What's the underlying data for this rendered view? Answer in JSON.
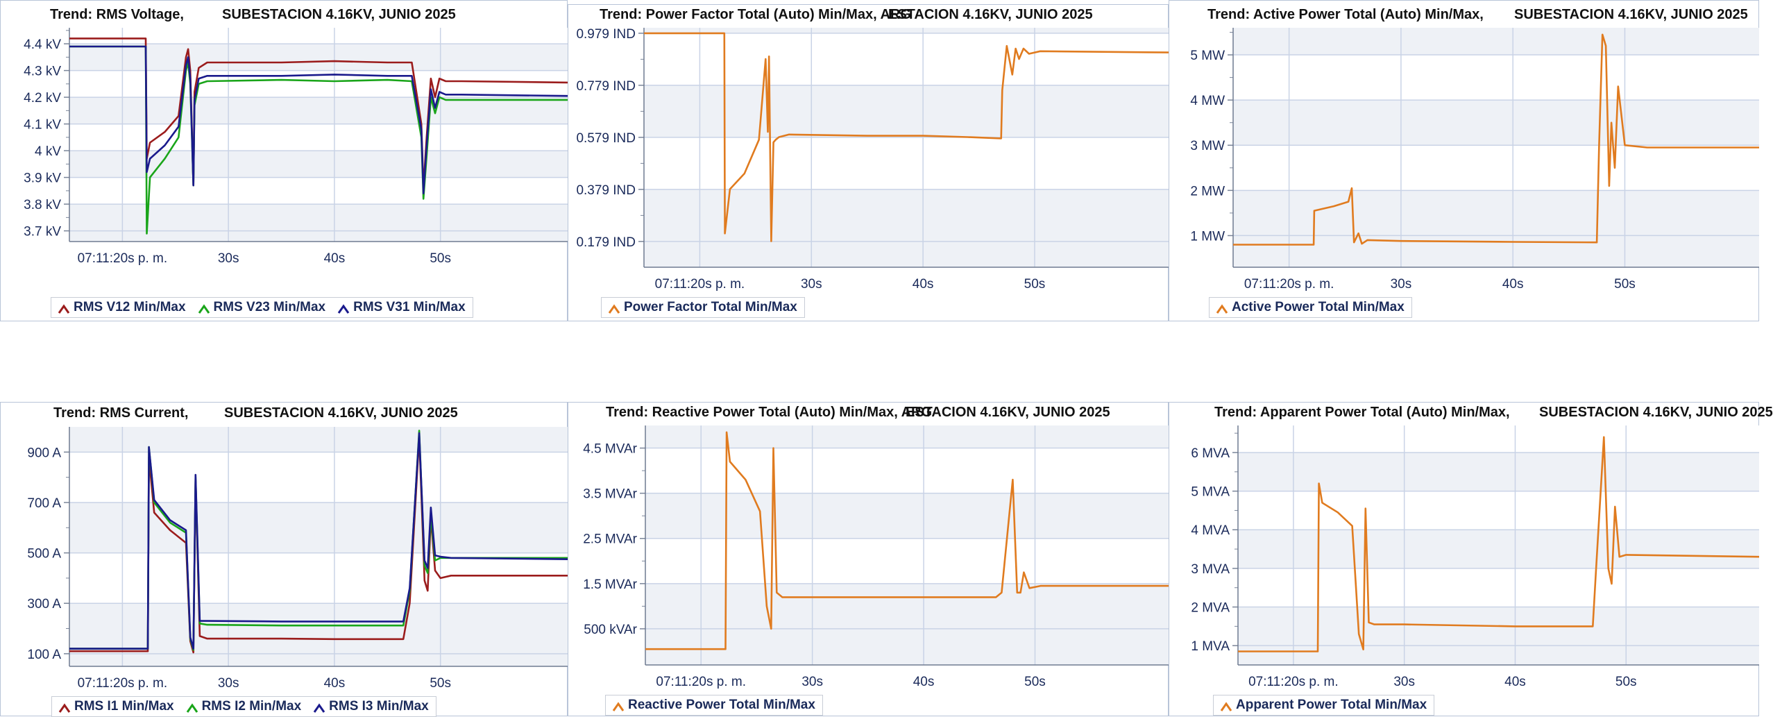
{
  "panels": [
    {
      "id": "rms-voltage",
      "title_left": "Trend: RMS Voltage,",
      "title_right": "SUBESTACION 4.16KV, JUNIO 2025",
      "legend": [
        {
          "label": "RMS V12 Min/Max",
          "color": "#9b1c1c"
        },
        {
          "label": "RMS V23 Min/Max",
          "color": "#1aa51a"
        },
        {
          "label": "RMS V31 Min/Max",
          "color": "#1a1a8c"
        }
      ],
      "x_tick_labels": [
        "07:11:20s p. m.",
        "30s",
        "40s",
        "50s"
      ]
    },
    {
      "id": "power-factor",
      "title_left": "Trend: Power Factor Total (Auto) Min/Max, ARG",
      "title_right": "ESTACION 4.16KV, JUNIO 2025",
      "legend": [
        {
          "label": "Power Factor Total Min/Max",
          "color": "#e07b1f"
        }
      ],
      "x_tick_labels": [
        "07:11:20s p. m.",
        "30s",
        "40s",
        "50s"
      ]
    },
    {
      "id": "active-power",
      "title_left": "Trend: Active Power Total (Auto) Min/Max,",
      "title_right": "SUBESTACION 4.16KV, JUNIO 2025",
      "legend": [
        {
          "label": "Active Power Total Min/Max",
          "color": "#e07b1f"
        }
      ],
      "x_tick_labels": [
        "07:11:20s p. m.",
        "30s",
        "40s",
        "50s"
      ]
    },
    {
      "id": "rms-current",
      "title_left": "Trend: RMS Current,",
      "title_right": "SUBESTACION 4.16KV, JUNIO 2025",
      "legend": [
        {
          "label": "RMS I1 Min/Max",
          "color": "#9b1c1c"
        },
        {
          "label": "RMS I2 Min/Max",
          "color": "#1aa51a"
        },
        {
          "label": "RMS I3 Min/Max",
          "color": "#1a1a8c"
        }
      ],
      "x_tick_labels": [
        "07:11:20s p. m.",
        "30s",
        "40s",
        "50s"
      ]
    },
    {
      "id": "reactive-power",
      "title_left": "Trend: Reactive Power Total (Auto) Min/Max, ARG",
      "title_right": "ESTACION 4.16KV, JUNIO 2025",
      "legend": [
        {
          "label": "Reactive Power Total Min/Max",
          "color": "#e07b1f"
        }
      ],
      "x_tick_labels": [
        "07:11:20s p. m.",
        "30s",
        "40s",
        "50s"
      ]
    },
    {
      "id": "apparent-power",
      "title_left": "Trend: Apparent Power Total (Auto) Min/Max,",
      "title_right": "SUBESTACION 4.16KV, JUNIO 2025",
      "legend": [
        {
          "label": "Apparent Power Total Min/Max",
          "color": "#e07b1f"
        }
      ],
      "x_tick_labels": [
        "07:11:20s p. m.",
        "30s",
        "40s",
        "50s"
      ]
    }
  ],
  "chart_data": [
    {
      "type": "line",
      "title": "Trend: RMS Voltage, SUBESTACION 4.16KV, JUNIO 2025",
      "x_unit": "s",
      "xlim": [
        15,
        62
      ],
      "ylim": [
        3.66,
        4.46
      ],
      "y_ticks": [
        3.7,
        3.8,
        3.9,
        4.0,
        4.1,
        4.2,
        4.3,
        4.4
      ],
      "y_tick_labels": [
        "3.7 kV",
        "3.8 kV",
        "3.9 kV",
        "4 kV",
        "4.1 kV",
        "4.2 kV",
        "4.3 kV",
        "4.4 kV"
      ],
      "x_ticks": [
        20,
        30,
        40,
        50
      ],
      "series": [
        {
          "name": "RMS V12 Min/Max",
          "color": "#9b1c1c",
          "x": [
            15,
            22.2,
            22.3,
            22.6,
            24,
            25.3,
            26,
            26.2,
            26.4,
            26.7,
            26.8,
            27.2,
            28,
            35,
            40,
            45,
            47.3,
            48.2,
            48.4,
            48.7,
            49.1,
            49.5,
            49.9,
            50.5,
            52,
            62
          ],
          "y": [
            4.42,
            4.42,
            3.97,
            4.03,
            4.07,
            4.13,
            4.35,
            4.38,
            4.3,
            3.87,
            4.22,
            4.31,
            4.33,
            4.33,
            4.335,
            4.33,
            4.33,
            4.1,
            3.86,
            4.05,
            4.27,
            4.2,
            4.27,
            4.26,
            4.26,
            4.255
          ]
        },
        {
          "name": "RMS V23 Min/Max",
          "color": "#1aa51a",
          "x": [
            15,
            22.2,
            22.3,
            22.6,
            24,
            25.3,
            26,
            26.2,
            26.4,
            26.7,
            26.8,
            27.2,
            28,
            35,
            40,
            45,
            47.3,
            48.2,
            48.4,
            48.7,
            49.1,
            49.5,
            49.9,
            50.5,
            52,
            62
          ],
          "y": [
            4.39,
            4.39,
            3.69,
            3.9,
            3.97,
            4.05,
            4.3,
            4.33,
            4.25,
            3.87,
            4.17,
            4.25,
            4.26,
            4.265,
            4.26,
            4.265,
            4.26,
            4.05,
            3.82,
            3.98,
            4.2,
            4.14,
            4.2,
            4.19,
            4.19,
            4.19
          ]
        },
        {
          "name": "RMS V31 Min/Max",
          "color": "#1a1a8c",
          "x": [
            15,
            22.2,
            22.3,
            22.6,
            24,
            25.3,
            26,
            26.2,
            26.4,
            26.7,
            26.8,
            27.2,
            28,
            35,
            40,
            45,
            47.3,
            48.2,
            48.4,
            48.7,
            49.1,
            49.5,
            49.9,
            50.5,
            52,
            62
          ],
          "y": [
            4.39,
            4.39,
            3.92,
            3.97,
            4.02,
            4.09,
            4.32,
            4.35,
            4.27,
            3.87,
            4.19,
            4.27,
            4.28,
            4.28,
            4.285,
            4.28,
            4.28,
            4.08,
            3.84,
            4.02,
            4.23,
            4.16,
            4.22,
            4.21,
            4.21,
            4.205
          ]
        }
      ]
    },
    {
      "type": "line",
      "title": "Trend: Power Factor Total (Auto) Min/Max, ARGESTACION 4.16KV, JUNIO 2025",
      "x_unit": "s",
      "xlim": [
        15,
        62
      ],
      "ylim": [
        0.08,
        1.0
      ],
      "y_ticks": [
        0.179,
        0.379,
        0.579,
        0.779,
        0.979
      ],
      "y_tick_labels": [
        "0.179 IND",
        "0.379 IND",
        "0.579 IND",
        "0.779 IND",
        "0.979 IND"
      ],
      "x_ticks": [
        20,
        30,
        40,
        50
      ],
      "series": [
        {
          "name": "Power Factor Total Min/Max",
          "color": "#e07b1f",
          "x": [
            15,
            22.2,
            22.25,
            22.7,
            24,
            25.3,
            25.9,
            26.1,
            26.2,
            26.4,
            26.6,
            26.8,
            27.1,
            28,
            35,
            40,
            44,
            47.0,
            47.1,
            47.5,
            48.0,
            48.3,
            48.6,
            49.0,
            49.5,
            50.5,
            62
          ],
          "y": [
            0.979,
            0.979,
            0.21,
            0.38,
            0.44,
            0.57,
            0.88,
            0.6,
            0.89,
            0.18,
            0.56,
            0.57,
            0.58,
            0.59,
            0.585,
            0.585,
            0.58,
            0.575,
            0.76,
            0.93,
            0.82,
            0.92,
            0.88,
            0.92,
            0.9,
            0.91,
            0.905
          ]
        }
      ]
    },
    {
      "type": "line",
      "title": "Trend: Active Power Total (Auto) Min/Max, SUBESTACION 4.16KV, JUNIO 2025",
      "x_unit": "s",
      "xlim": [
        15,
        62
      ],
      "ylim": [
        0.3,
        5.6
      ],
      "y_ticks": [
        1,
        2,
        3,
        4,
        5
      ],
      "y_tick_labels": [
        "1 MW",
        "2 MW",
        "3 MW",
        "4 MW",
        "5 MW"
      ],
      "x_ticks": [
        20,
        30,
        40,
        50
      ],
      "series": [
        {
          "name": "Active Power Total Min/Max",
          "color": "#e07b1f",
          "x": [
            15,
            22.2,
            22.25,
            24,
            25.3,
            25.6,
            25.8,
            26.2,
            26.5,
            27,
            30,
            40,
            47.5,
            47.7,
            48.0,
            48.3,
            48.6,
            48.8,
            49.1,
            49.4,
            50.0,
            52,
            62
          ],
          "y": [
            0.8,
            0.8,
            1.55,
            1.65,
            1.75,
            2.05,
            0.85,
            1.05,
            0.82,
            0.9,
            0.88,
            0.86,
            0.85,
            3.0,
            5.45,
            5.2,
            2.1,
            3.5,
            2.5,
            4.3,
            3.0,
            2.95,
            2.95
          ]
        }
      ]
    },
    {
      "type": "line",
      "title": "Trend: RMS Current, SUBESTACION 4.16KV, JUNIO 2025",
      "x_unit": "s",
      "xlim": [
        15,
        62
      ],
      "ylim": [
        50,
        1000
      ],
      "y_ticks": [
        100,
        300,
        500,
        700,
        900
      ],
      "y_tick_labels": [
        "100 A",
        "300 A",
        "500 A",
        "700 A",
        "900 A"
      ],
      "x_ticks": [
        20,
        30,
        40,
        50
      ],
      "series": [
        {
          "name": "RMS I1 Min/Max",
          "color": "#9b1c1c",
          "x": [
            15,
            22.4,
            22.5,
            23,
            24.5,
            26.0,
            26.4,
            26.7,
            26.9,
            27.3,
            28,
            35,
            40,
            46.5,
            47.1,
            48.0,
            48.5,
            48.8,
            49.1,
            49.5,
            50.0,
            51,
            62
          ],
          "y": [
            110,
            110,
            880,
            660,
            590,
            540,
            150,
            105,
            790,
            170,
            160,
            160,
            158,
            158,
            300,
            960,
            390,
            350,
            640,
            430,
            400,
            410,
            410
          ]
        },
        {
          "name": "RMS I2 Min/Max",
          "color": "#1aa51a",
          "x": [
            15,
            22.4,
            22.5,
            23,
            24.5,
            26.0,
            26.4,
            26.7,
            26.9,
            27.3,
            28,
            35,
            40,
            46.5,
            47.1,
            48.0,
            48.5,
            48.8,
            49.1,
            49.5,
            50.0,
            51,
            62
          ],
          "y": [
            120,
            120,
            920,
            700,
            620,
            580,
            160,
            115,
            800,
            220,
            215,
            212,
            212,
            212,
            350,
            985,
            450,
            420,
            650,
            470,
            480,
            480,
            480
          ]
        },
        {
          "name": "RMS I3 Min/Max",
          "color": "#1a1a8c",
          "x": [
            15,
            22.4,
            22.5,
            23,
            24.5,
            26.0,
            26.4,
            26.7,
            26.9,
            27.3,
            28,
            35,
            40,
            46.5,
            47.1,
            48.0,
            48.5,
            48.8,
            49.1,
            49.5,
            50.0,
            51,
            62
          ],
          "y": [
            120,
            120,
            920,
            710,
            630,
            590,
            165,
            120,
            810,
            230,
            230,
            228,
            228,
            228,
            360,
            975,
            470,
            440,
            680,
            490,
            485,
            480,
            475
          ]
        }
      ]
    },
    {
      "type": "line",
      "title": "Trend: Reactive Power Total (Auto) Min/Max, ARGESTACION 4.16KV, JUNIO 2025",
      "x_unit": "s",
      "xlim": [
        15,
        62
      ],
      "ylim": [
        -0.3,
        5.0
      ],
      "y_ticks": [
        0.5,
        1.5,
        2.5,
        3.5,
        4.5
      ],
      "y_tick_labels": [
        "500 kVAr",
        "1.5 MVAr",
        "2.5 MVAr",
        "3.5 MVAr",
        "4.5 MVAr"
      ],
      "x_ticks": [
        20,
        30,
        40,
        50
      ],
      "series": [
        {
          "name": "Reactive Power Total Min/Max",
          "color": "#e07b1f",
          "x": [
            15,
            22.2,
            22.3,
            22.6,
            24,
            25.3,
            25.9,
            26.3,
            26.5,
            26.8,
            27.3,
            30,
            40,
            46.5,
            47.0,
            48.0,
            48.4,
            48.7,
            49.0,
            49.5,
            50.5,
            62
          ],
          "y": [
            0.05,
            0.05,
            4.85,
            4.2,
            3.8,
            3.1,
            1.0,
            0.5,
            4.5,
            1.3,
            1.2,
            1.2,
            1.2,
            1.2,
            1.3,
            3.8,
            1.3,
            1.3,
            1.75,
            1.4,
            1.45,
            1.45
          ]
        }
      ]
    },
    {
      "type": "line",
      "title": "Trend: Apparent Power Total (Auto) Min/Max, SUBESTACION 4.16KV, JUNIO 2025",
      "x_unit": "s",
      "xlim": [
        15,
        62
      ],
      "ylim": [
        0.5,
        6.7
      ],
      "y_ticks": [
        1,
        2,
        3,
        4,
        5,
        6
      ],
      "y_tick_labels": [
        "1 MVA",
        "2 MVA",
        "3 MVA",
        "4 MVA",
        "5 MVA",
        "6 MVA"
      ],
      "x_ticks": [
        20,
        30,
        40,
        50
      ],
      "series": [
        {
          "name": "Apparent Power Total Min/Max",
          "color": "#e07b1f",
          "x": [
            15,
            22.2,
            22.3,
            22.6,
            24,
            25.3,
            25.9,
            26.3,
            26.5,
            26.8,
            27.3,
            30,
            40,
            47.0,
            47.3,
            48.0,
            48.4,
            48.7,
            49.0,
            49.4,
            50.0,
            62
          ],
          "y": [
            0.85,
            0.85,
            5.2,
            4.7,
            4.45,
            4.1,
            1.3,
            0.9,
            4.55,
            1.6,
            1.55,
            1.55,
            1.5,
            1.5,
            3.0,
            6.4,
            3.0,
            2.6,
            4.6,
            3.3,
            3.35,
            3.3
          ]
        }
      ]
    }
  ]
}
